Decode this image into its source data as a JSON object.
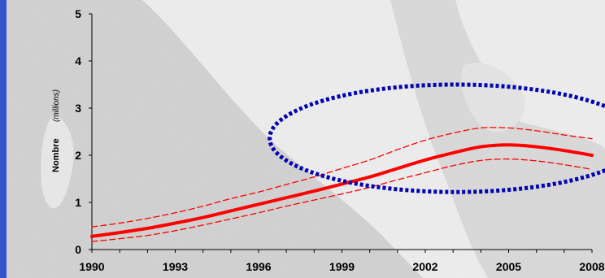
{
  "chart_data": {
    "type": "line",
    "title": "",
    "xlabel": "",
    "ylabel": "Nombre",
    "ylabel_unit": "(millions)",
    "xlim": [
      1990,
      2008
    ],
    "ylim": [
      0,
      5
    ],
    "x_ticks": [
      "1990",
      "1993",
      "1996",
      "1999",
      "2002",
      "2005",
      "2008"
    ],
    "y_ticks": [
      "0",
      "1",
      "2",
      "3",
      "4",
      "5"
    ],
    "grid": false,
    "legend": "none",
    "series": [
      {
        "role": "estimate",
        "style": "solid",
        "color": "#ff0000",
        "x": [
          1990,
          1991,
          1992,
          1993,
          1994,
          1995,
          1996,
          1997,
          1998,
          1999,
          2000,
          2001,
          2002,
          2003,
          2004,
          2005,
          2006,
          2007,
          2008
        ],
        "y": [
          0.28,
          0.36,
          0.45,
          0.56,
          0.68,
          0.82,
          0.96,
          1.1,
          1.24,
          1.39,
          1.54,
          1.72,
          1.9,
          2.05,
          2.18,
          2.22,
          2.18,
          2.1,
          2.0
        ]
      },
      {
        "role": "upper-bound",
        "style": "dashed",
        "color": "#ff0000",
        "x": [
          1990,
          1991,
          1992,
          1993,
          1994,
          1995,
          1996,
          1997,
          1998,
          1999,
          2000,
          2001,
          2002,
          2003,
          2004,
          2005,
          2006,
          2007,
          2008
        ],
        "y": [
          0.48,
          0.56,
          0.66,
          0.78,
          0.92,
          1.08,
          1.22,
          1.38,
          1.54,
          1.72,
          1.9,
          2.12,
          2.32,
          2.47,
          2.58,
          2.58,
          2.52,
          2.43,
          2.35
        ]
      },
      {
        "role": "lower-bound",
        "style": "dashed",
        "color": "#ff0000",
        "x": [
          1990,
          1991,
          1992,
          1993,
          1994,
          1995,
          1996,
          1997,
          1998,
          1999,
          2000,
          2001,
          2002,
          2003,
          2004,
          2005,
          2006,
          2007,
          2008
        ],
        "y": [
          0.17,
          0.23,
          0.3,
          0.4,
          0.52,
          0.65,
          0.78,
          0.92,
          1.05,
          1.18,
          1.32,
          1.48,
          1.63,
          1.78,
          1.89,
          1.92,
          1.88,
          1.8,
          1.7
        ]
      }
    ],
    "annotation": {
      "type": "dotted-ellipse",
      "color": "#0000b3",
      "center_x": 2003.1,
      "center_y": 2.36,
      "radius_x": 6.7,
      "radius_y": 1.14
    },
    "colors": {
      "axis": "#000000",
      "left_border": "#3355cc",
      "background_land": "#f0f0f0",
      "background_sea": "#d4d4d4"
    }
  }
}
